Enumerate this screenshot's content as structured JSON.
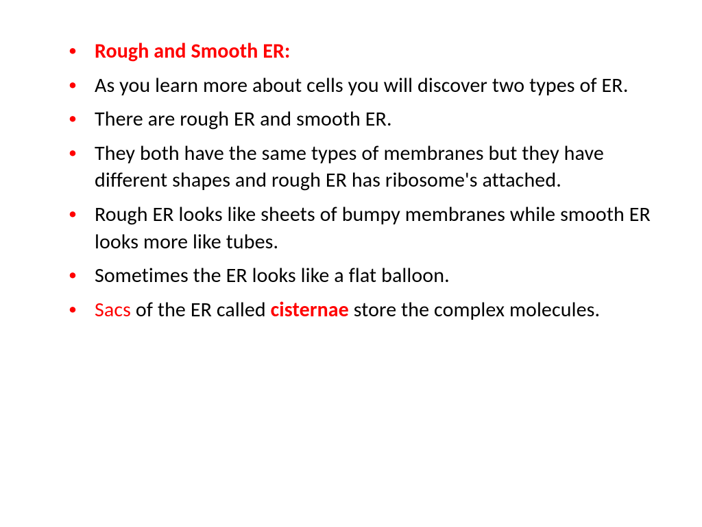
{
  "slide": {
    "background": "#ffffff",
    "bullet_color": "#ff0000",
    "text_color": "#000000",
    "highlight_color": "#ff0000",
    "font_family": "Calibri",
    "font_size_pt": 24,
    "bullets": [
      {
        "type": "heading",
        "text": "Rough and Smooth ER:"
      },
      {
        "type": "plain",
        "text": "As you learn more about cells you will discover two types of ER."
      },
      {
        "type": "plain",
        "text": "There are rough ER and smooth ER."
      },
      {
        "type": "plain",
        "text": "They both have the same types of membranes but they have different shapes and rough ER has ribosome's  attached."
      },
      {
        "type": "plain",
        "text": " Rough ER looks like sheets of bumpy membranes while smooth ER looks more like tubes."
      },
      {
        "type": "plain",
        "text": "Sometimes the ER looks like a flat balloon."
      },
      {
        "type": "mixed",
        "runs": [
          {
            "text": "Sacs",
            "style": "keyword-sacs"
          },
          {
            "text": " of the ER called ",
            "style": "normal"
          },
          {
            "text": "cisternae",
            "style": "keyword"
          },
          {
            "text": " store the complex molecules.",
            "style": "normal"
          }
        ]
      }
    ]
  }
}
